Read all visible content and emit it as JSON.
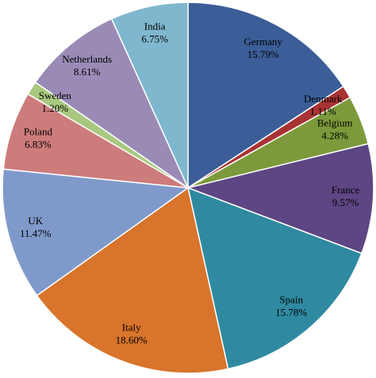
{
  "chart_data": {
    "type": "pie",
    "categories": [
      "Germany",
      "Denmark",
      "Belgium",
      "France",
      "Spain",
      "Italy",
      "UK",
      "Poland",
      "Sweden",
      "Netherlands",
      "India"
    ],
    "values": [
      15.79,
      1.11,
      4.28,
      9.57,
      15.78,
      18.6,
      11.47,
      6.83,
      1.2,
      8.61,
      6.75
    ],
    "value_labels": [
      "15.79%",
      "1.11%",
      "4.28%",
      "9.57%",
      "15.78%",
      "18.60%",
      "11.47%",
      "6.83%",
      "1.20%",
      "8.61%",
      "6.75%"
    ],
    "colors": [
      "#3b5e98",
      "#a83333",
      "#7c9a3b",
      "#5d4683",
      "#2f8aa1",
      "#d8742b",
      "#7f9aca",
      "#cc7c7b",
      "#a8c87f",
      "#9a8bb6",
      "#7fb7cf"
    ]
  }
}
